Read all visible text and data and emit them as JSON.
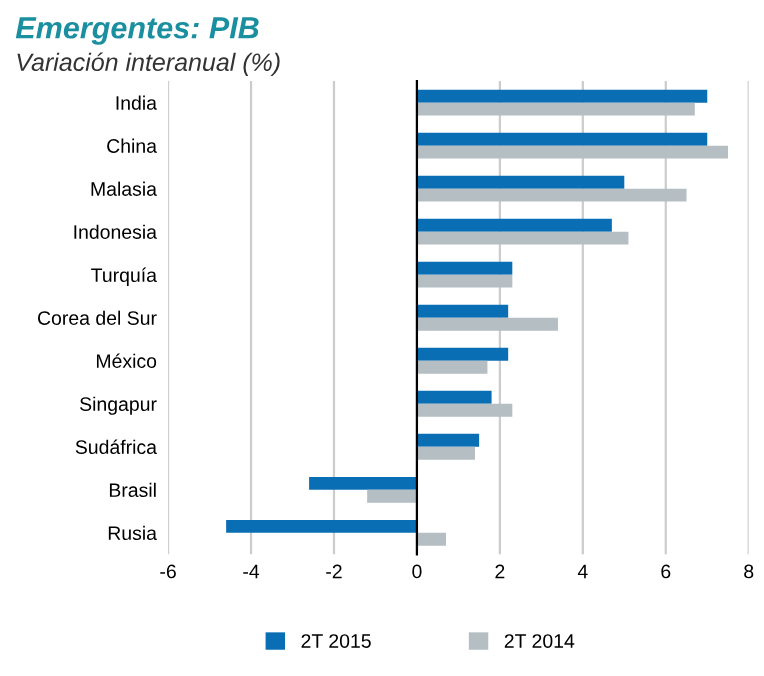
{
  "chart_data": {
    "type": "bar",
    "orientation": "horizontal",
    "title": "Emergentes: PIB",
    "subtitle": "Variación interanual (%)",
    "categories": [
      "India",
      "China",
      "Malasia",
      "Indonesia",
      "Turquía",
      "Corea del Sur",
      "México",
      "Singapur",
      "Sudáfrica",
      "Brasil",
      "Rusia"
    ],
    "series": [
      {
        "name": "2T 2015",
        "color": "#0a6eb4",
        "values": [
          7.0,
          7.0,
          5.0,
          4.7,
          2.3,
          2.2,
          2.2,
          1.8,
          1.5,
          -2.6,
          -4.6
        ]
      },
      {
        "name": "2T 2014",
        "color": "#b4bec3",
        "values": [
          6.7,
          7.5,
          6.5,
          5.1,
          2.3,
          3.4,
          1.7,
          2.3,
          1.4,
          -1.2,
          0.7
        ]
      }
    ],
    "xlim": [
      -6,
      8
    ],
    "xticks": [
      -6,
      -4,
      -2,
      0,
      2,
      4,
      6,
      8
    ],
    "grid": "x",
    "legend": "bottom"
  }
}
